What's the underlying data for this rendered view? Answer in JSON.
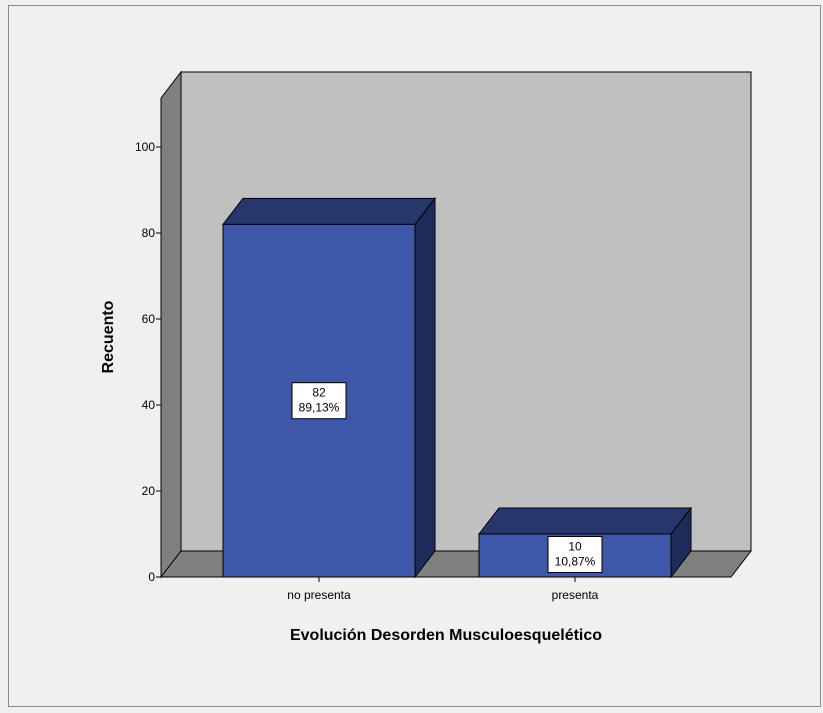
{
  "chart_data": {
    "type": "bar",
    "style": "3d",
    "categories": [
      "no presenta",
      "presenta"
    ],
    "values": [
      82,
      10
    ],
    "percent_labels": [
      "89,13%",
      "10,87%"
    ],
    "xlabel": "Evolución Desorden Musculoesquelético",
    "ylabel": "Recuento",
    "ylim": [
      0,
      100
    ],
    "yticks": [
      0,
      20,
      40,
      60,
      80,
      100
    ],
    "grid": false,
    "legend": "none",
    "colors": {
      "bar_front": "#3f57a8",
      "bar_top": "#27376b",
      "bar_side": "#1f2c5a",
      "plot_back": "#c0c0c0",
      "wall_left": "#808080",
      "floor": "#808080",
      "frame_background": "#f0f0f0"
    }
  }
}
